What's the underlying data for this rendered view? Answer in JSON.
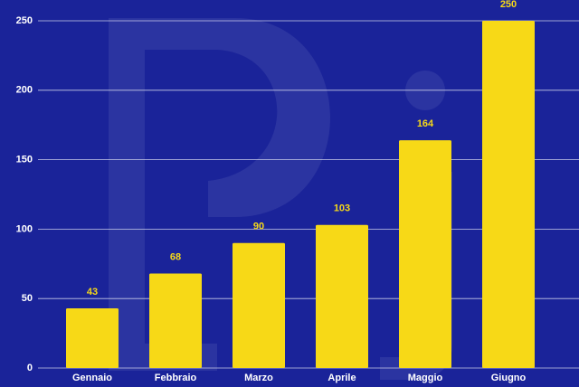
{
  "chart_data": {
    "type": "bar",
    "categories": [
      "Gennaio",
      "Febbraio",
      "Marzo",
      "Aprile",
      "Maggio",
      "Giugno"
    ],
    "values": [
      43,
      68,
      90,
      103,
      164,
      250
    ],
    "color": "#f7d917",
    "ylim": [
      0,
      250
    ],
    "yticks": [
      0,
      50,
      100,
      150,
      200,
      250
    ],
    "grid": true
  }
}
